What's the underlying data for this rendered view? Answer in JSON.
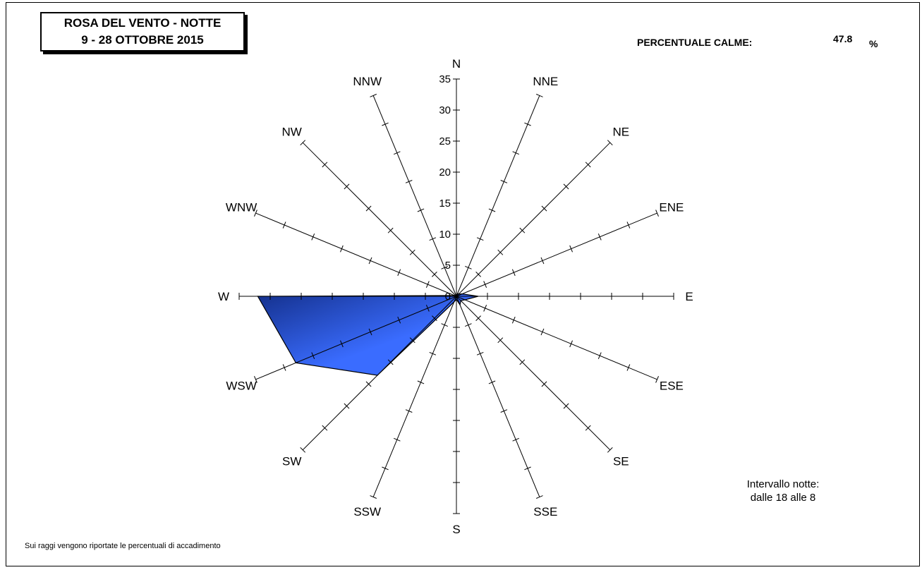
{
  "title": {
    "line1": "ROSA DEL VENTO - NOTTE",
    "line2": "9 - 28 OTTOBRE 2015"
  },
  "calme": {
    "label": "PERCENTUALE CALME:",
    "value": "47.8",
    "unit": "%"
  },
  "interval": {
    "line1": "Intervallo notte:",
    "line2": "dalle 18 alle 8"
  },
  "footnote": "Sui raggi vengono riportate le percentuali di accadimento",
  "colors": {
    "fill_light": "#3a6cff",
    "fill_dark": "#14308c",
    "axis": "#000000"
  },
  "chart_data": {
    "type": "radar",
    "directions": [
      "N",
      "NNE",
      "NE",
      "ENE",
      "E",
      "ESE",
      "SE",
      "SSE",
      "S",
      "SSW",
      "SW",
      "WSW",
      "W",
      "WNW",
      "NW",
      "NNW"
    ],
    "values": [
      0.0,
      0.5,
      0.5,
      1.0,
      3.5,
      1.5,
      1.0,
      1.5,
      0.5,
      1.0,
      18.0,
      28.0,
      32.0,
      0.3,
      0.2,
      0.0
    ],
    "rmax": 35,
    "ticks": [
      0,
      5,
      10,
      15,
      20,
      25,
      30,
      35
    ],
    "tick_labels": [
      "0",
      "5",
      "10",
      "15",
      "20",
      "25",
      "30",
      "35"
    ]
  }
}
